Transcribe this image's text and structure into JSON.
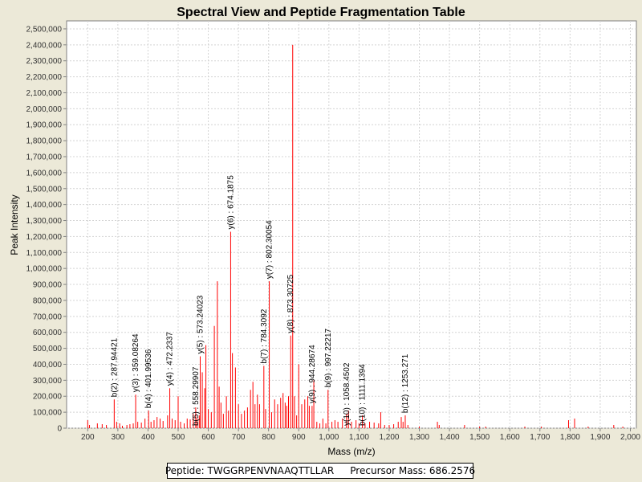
{
  "chart_data": {
    "type": "bar",
    "title": "Spectral View and Peptide Fragmentation Table",
    "xlabel": "Mass (m/z)",
    "ylabel": "Peak Intensity",
    "xlim": [
      130,
      2020
    ],
    "ylim": [
      0,
      2550000
    ],
    "x_ticks": [
      "200",
      "300",
      "400",
      "500",
      "600",
      "700",
      "800",
      "900",
      "1,000",
      "1,100",
      "1,200",
      "1,300",
      "1,400",
      "1,500",
      "1,600",
      "1,700",
      "1,800",
      "1,900",
      "2,000"
    ],
    "y_ticks": [
      "0",
      "100,000",
      "200,000",
      "300,000",
      "400,000",
      "500,000",
      "600,000",
      "700,000",
      "800,000",
      "900,000",
      "1,000,000",
      "1,100,000",
      "1,200,000",
      "1,300,000",
      "1,400,000",
      "1,500,000",
      "1,600,000",
      "1,700,000",
      "1,800,000",
      "1,900,000",
      "2,000,000",
      "2,100,000",
      "2,200,000",
      "2,300,000",
      "2,400,000",
      "2,500,000"
    ],
    "grid": true,
    "bar_color": "#ff0000",
    "peaks": [
      [
        200,
        50000
      ],
      [
        206,
        20000
      ],
      [
        232,
        30000
      ],
      [
        248,
        25000
      ],
      [
        262,
        20000
      ],
      [
        287.94,
        180000
      ],
      [
        296,
        40000
      ],
      [
        306,
        30000
      ],
      [
        315,
        15000
      ],
      [
        330,
        20000
      ],
      [
        340,
        25000
      ],
      [
        351,
        30000
      ],
      [
        359.08,
        210000
      ],
      [
        366,
        40000
      ],
      [
        378,
        35000
      ],
      [
        390,
        60000
      ],
      [
        401.99,
        110000
      ],
      [
        410,
        40000
      ],
      [
        420,
        50000
      ],
      [
        430,
        70000
      ],
      [
        440,
        60000
      ],
      [
        450,
        45000
      ],
      [
        465,
        80000
      ],
      [
        472.23,
        250000
      ],
      [
        480,
        60000
      ],
      [
        490,
        50000
      ],
      [
        500,
        200000
      ],
      [
        508,
        40000
      ],
      [
        520,
        30000
      ],
      [
        530,
        60000
      ],
      [
        540,
        55000
      ],
      [
        550,
        90000
      ],
      [
        558.29,
        130000
      ],
      [
        563,
        60000
      ],
      [
        570,
        80000
      ],
      [
        573.24,
        450000
      ],
      [
        580,
        350000
      ],
      [
        588,
        250000
      ],
      [
        592,
        520000
      ],
      [
        600,
        120000
      ],
      [
        610,
        100000
      ],
      [
        620,
        640000
      ],
      [
        630,
        920000
      ],
      [
        636,
        260000
      ],
      [
        642,
        160000
      ],
      [
        650,
        90000
      ],
      [
        660,
        200000
      ],
      [
        667,
        110000
      ],
      [
        674.19,
        1230000
      ],
      [
        680,
        470000
      ],
      [
        690,
        380000
      ],
      [
        700,
        150000
      ],
      [
        710,
        90000
      ],
      [
        720,
        110000
      ],
      [
        730,
        130000
      ],
      [
        740,
        240000
      ],
      [
        748,
        290000
      ],
      [
        755,
        150000
      ],
      [
        763,
        210000
      ],
      [
        770,
        150000
      ],
      [
        784.31,
        390000
      ],
      [
        790,
        120000
      ],
      [
        802.3,
        920000
      ],
      [
        810,
        100000
      ],
      [
        820,
        180000
      ],
      [
        830,
        150000
      ],
      [
        840,
        190000
      ],
      [
        848,
        220000
      ],
      [
        855,
        160000
      ],
      [
        860,
        140000
      ],
      [
        866,
        200000
      ],
      [
        873.31,
        580000
      ],
      [
        880,
        2400000
      ],
      [
        886,
        200000
      ],
      [
        893,
        80000
      ],
      [
        900,
        400000
      ],
      [
        910,
        150000
      ],
      [
        920,
        180000
      ],
      [
        930,
        200000
      ],
      [
        935,
        140000
      ],
      [
        944.29,
        140000
      ],
      [
        950,
        300000
      ],
      [
        960,
        40000
      ],
      [
        970,
        30000
      ],
      [
        980,
        60000
      ],
      [
        990,
        30000
      ],
      [
        997.22,
        240000
      ],
      [
        1010,
        40000
      ],
      [
        1020,
        50000
      ],
      [
        1030,
        40000
      ],
      [
        1045,
        60000
      ],
      [
        1058.45,
        90000
      ],
      [
        1065,
        110000
      ],
      [
        1075,
        40000
      ],
      [
        1090,
        50000
      ],
      [
        1100,
        30000
      ],
      [
        1111.14,
        80000
      ],
      [
        1120,
        30000
      ],
      [
        1135,
        40000
      ],
      [
        1150,
        35000
      ],
      [
        1165,
        30000
      ],
      [
        1172,
        100000
      ],
      [
        1185,
        20000
      ],
      [
        1200,
        20000
      ],
      [
        1215,
        25000
      ],
      [
        1230,
        40000
      ],
      [
        1240,
        70000
      ],
      [
        1246,
        40000
      ],
      [
        1253.27,
        80000
      ],
      [
        1262,
        20000
      ],
      [
        1300,
        10000
      ],
      [
        1360,
        40000
      ],
      [
        1366,
        20000
      ],
      [
        1450,
        20000
      ],
      [
        1500,
        10000
      ],
      [
        1520,
        10000
      ],
      [
        1650,
        10000
      ],
      [
        1705,
        10000
      ],
      [
        1795,
        50000
      ],
      [
        1815,
        60000
      ],
      [
        1860,
        10000
      ],
      [
        1945,
        20000
      ],
      [
        1975,
        10000
      ]
    ],
    "annotations": [
      {
        "label": "b(2) : 287.94421",
        "x": 287.94,
        "y": 180000
      },
      {
        "label": "y(3) : 359.08264",
        "x": 359.08,
        "y": 210000
      },
      {
        "label": "b(4) : 401.99536",
        "x": 401.99,
        "y": 110000
      },
      {
        "label": "y(4) : 472.2337",
        "x": 472.23,
        "y": 250000
      },
      {
        "label": "b(5) : 558.29907",
        "x": 558.29,
        "y": 0
      },
      {
        "label": "y(5) : 573.24023",
        "x": 573.24,
        "y": 450000
      },
      {
        "label": "y(6) : 674.1875",
        "x": 674.19,
        "y": 1230000
      },
      {
        "label": "b(7) : 784.3092",
        "x": 784.31,
        "y": 390000
      },
      {
        "label": "y(7) : 802.30054",
        "x": 802.3,
        "y": 920000
      },
      {
        "label": "y(8) : 873.30725",
        "x": 873.31,
        "y": 580000
      },
      {
        "label": "y(9) : 944.28674",
        "x": 944.29,
        "y": 140000
      },
      {
        "label": "b(9) : 997.22217",
        "x": 997.22,
        "y": 240000
      },
      {
        "label": "y(10) : 1058.4502",
        "x": 1058.45,
        "y": 0
      },
      {
        "label": "b(10) : 1111.1394",
        "x": 1111.14,
        "y": 0
      },
      {
        "label": "b(12) : 1253.271",
        "x": 1253.27,
        "y": 80000
      }
    ]
  },
  "footer": {
    "peptide_label": "Peptide: TWGGRPENVNAAQTTLLAR",
    "precursor_label": "Precursor Mass: 686.2576"
  }
}
